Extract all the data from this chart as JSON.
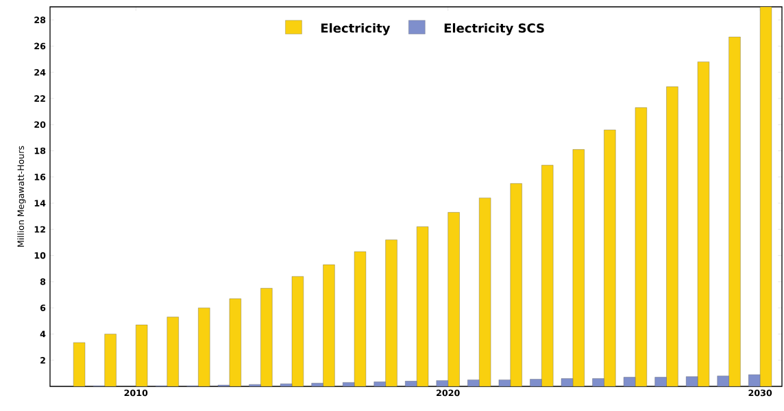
{
  "chart_data": {
    "type": "bar",
    "ylabel": "Million Megawatt-Hours",
    "x": [
      2008,
      2009,
      2010,
      2011,
      2012,
      2013,
      2014,
      2015,
      2016,
      2017,
      2018,
      2019,
      2020,
      2021,
      2022,
      2023,
      2024,
      2025,
      2026,
      2027,
      2028,
      2029,
      2030
    ],
    "series": [
      {
        "name": "Electricity",
        "color": "#f9d00f",
        "values": [
          3.35,
          4.0,
          4.7,
          5.3,
          6.0,
          6.7,
          7.5,
          8.4,
          9.3,
          10.3,
          11.2,
          12.2,
          13.3,
          14.4,
          15.5,
          16.9,
          18.1,
          19.6,
          21.3,
          22.9,
          24.8,
          26.7,
          29.0
        ]
      },
      {
        "name": "Electricity SCS",
        "color": "#7f8fcc",
        "values": [
          null,
          0.05,
          null,
          0.05,
          0.05,
          0.1,
          0.15,
          0.2,
          0.25,
          0.3,
          0.35,
          0.4,
          0.45,
          0.5,
          0.5,
          0.55,
          0.6,
          0.6,
          0.7,
          0.7,
          0.75,
          0.8,
          0.9
        ]
      }
    ],
    "xlim": [
      2007.25,
      2030.7
    ],
    "xticks": [
      2010,
      2020,
      2030
    ],
    "ylim": [
      0,
      29
    ],
    "yticks": [
      2,
      4,
      6,
      8,
      10,
      12,
      14,
      16,
      18,
      20,
      22,
      24,
      26,
      28
    ],
    "grid": false,
    "legend": "top"
  }
}
